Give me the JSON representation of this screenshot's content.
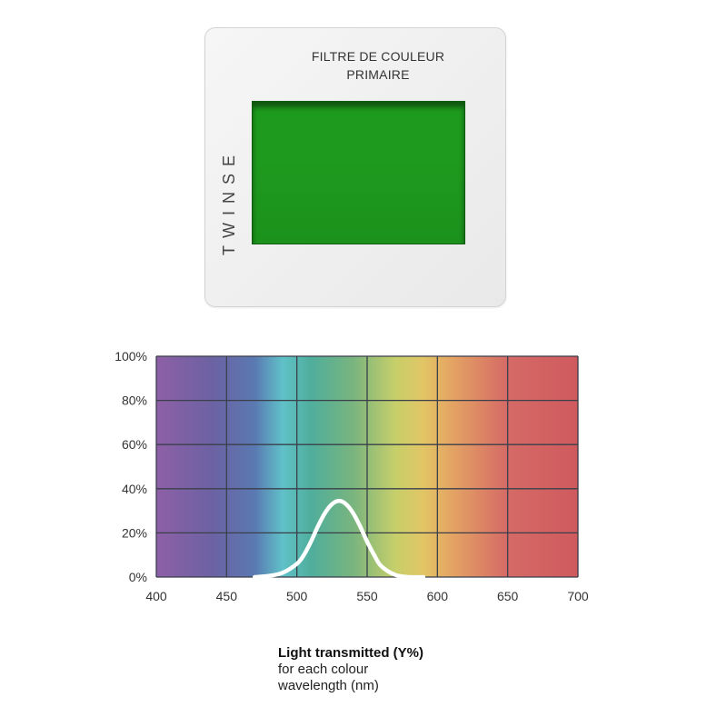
{
  "slide": {
    "title_line1": "FILTRE DE COULEUR",
    "title_line2": "PRIMAIRE",
    "brand": "TWINSE",
    "filter_color": "#1e9a1e"
  },
  "caption": {
    "line1": "Light transmitted (Y%)",
    "line2": "for each colour",
    "line3": "wavelength (nm)"
  },
  "chart_data": {
    "type": "line",
    "title": "",
    "xlabel": "",
    "ylabel": "",
    "xlim": [
      400,
      700
    ],
    "ylim": [
      0,
      100
    ],
    "xticks": [
      400,
      450,
      500,
      550,
      600,
      650,
      700
    ],
    "xtick_labels": [
      "400",
      "450",
      "500",
      "550",
      "600",
      "650",
      "700"
    ],
    "yticks": [
      0,
      20,
      40,
      60,
      80,
      100
    ],
    "ytick_labels": [
      "0%",
      "20%",
      "40%",
      "60%",
      "80%",
      "100%"
    ],
    "grid": true,
    "background": "visible spectrum gradient",
    "series": [
      {
        "color": "#ffffff",
        "x": [
          470,
          480,
          490,
          500,
          505,
          510,
          515,
          520,
          525,
          530,
          535,
          540,
          545,
          550,
          555,
          560,
          570,
          580,
          590
        ],
        "y": [
          0,
          0.5,
          2,
          6,
          10,
          16,
          23,
          29,
          33,
          34.5,
          33,
          29,
          23,
          16,
          10,
          5,
          1,
          0,
          0
        ]
      }
    ],
    "spectrum_colors": [
      {
        "nm": 400,
        "color": "#8e5fa6"
      },
      {
        "nm": 440,
        "color": "#6c62a3"
      },
      {
        "nm": 470,
        "color": "#5a79b2"
      },
      {
        "nm": 490,
        "color": "#60c1c8"
      },
      {
        "nm": 510,
        "color": "#4fae9c"
      },
      {
        "nm": 540,
        "color": "#79b47e"
      },
      {
        "nm": 570,
        "color": "#c6cf6a"
      },
      {
        "nm": 590,
        "color": "#e2c565"
      },
      {
        "nm": 610,
        "color": "#e4a463"
      },
      {
        "nm": 650,
        "color": "#d56a66"
      },
      {
        "nm": 700,
        "color": "#cf5a5e"
      }
    ]
  }
}
